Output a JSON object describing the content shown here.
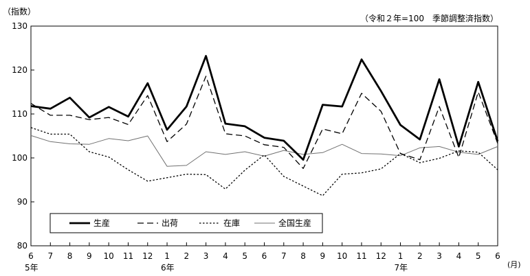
{
  "chart_data": {
    "type": "line",
    "y_unit_label": "（指数）",
    "note": "（令和２年=100　季節調整済指数）",
    "x_unit_label": "(月)",
    "ylim": [
      80,
      130
    ],
    "yticks": [
      80,
      90,
      100,
      110,
      120,
      130
    ],
    "grid": false,
    "legend_position": "bottom-left",
    "categories": [
      "6",
      "7",
      "8",
      "9",
      "10",
      "11",
      "12",
      "1",
      "2",
      "3",
      "4",
      "5",
      "6",
      "7",
      "8",
      "9",
      "10",
      "11",
      "12",
      "1",
      "2",
      "3",
      "4",
      "5",
      "6"
    ],
    "year_labels": [
      {
        "index": 0,
        "label": "5年"
      },
      {
        "index": 7,
        "label": "6年"
      },
      {
        "index": 19,
        "label": "7年"
      }
    ],
    "series": [
      {
        "name": "生産",
        "style": "thick-solid",
        "color": "#000000",
        "values": [
          111.8,
          111.2,
          113.7,
          109.2,
          111.6,
          109.4,
          117.0,
          106.4,
          111.7,
          123.2,
          107.8,
          107.2,
          104.6,
          103.9,
          99.6,
          112.1,
          111.7,
          122.4,
          115.2,
          107.5,
          104.2,
          117.9,
          102.6,
          117.3,
          103.8
        ]
      },
      {
        "name": "出荷",
        "style": "dashed",
        "color": "#000000",
        "values": [
          112.4,
          109.7,
          109.7,
          108.7,
          109.2,
          107.6,
          114.2,
          103.7,
          107.7,
          118.6,
          105.5,
          105.0,
          103.0,
          102.4,
          97.6,
          106.6,
          105.5,
          114.7,
          110.6,
          101.0,
          99.6,
          111.7,
          100.1,
          115.0,
          103.3
        ]
      },
      {
        "name": "在庫",
        "style": "dotted",
        "color": "#000000",
        "values": [
          106.9,
          105.4,
          105.4,
          101.4,
          100.2,
          97.3,
          94.7,
          95.5,
          96.3,
          96.2,
          92.9,
          97.2,
          100.7,
          95.8,
          93.6,
          91.4,
          96.3,
          96.6,
          97.5,
          101.0,
          98.9,
          99.9,
          101.6,
          101.3,
          97.3
        ]
      },
      {
        "name": "全国生産",
        "style": "thin-solid",
        "color": "#707070",
        "values": [
          105.1,
          103.7,
          103.2,
          103.1,
          104.4,
          103.9,
          105.0,
          98.1,
          98.3,
          101.4,
          100.8,
          101.4,
          100.4,
          101.7,
          100.8,
          101.2,
          103.1,
          101.0,
          100.9,
          100.5,
          102.3,
          102.6,
          101.3,
          100.8,
          102.6
        ]
      }
    ]
  }
}
